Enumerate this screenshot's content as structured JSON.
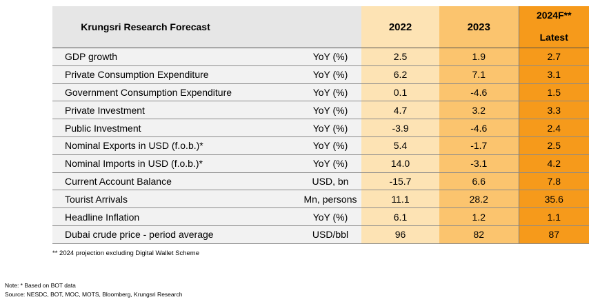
{
  "table": {
    "title": "Krungsri Research Forecast",
    "year_1": "2022",
    "year_2": "2023",
    "year_3_line1": "2024F**",
    "year_3_line2": "Latest",
    "rows": [
      {
        "name": "GDP growth",
        "unit": "YoY (%)",
        "v1": "2.5",
        "v2": "1.9",
        "v3": "2.7"
      },
      {
        "name": "Private Consumption Expenditure",
        "unit": "YoY (%)",
        "v1": "6.2",
        "v2": "7.1",
        "v3": "3.1"
      },
      {
        "name": "Government Consumption Expenditure",
        "unit": "YoY (%)",
        "v1": "0.1",
        "v2": "-4.6",
        "v3": "1.5"
      },
      {
        "name": "Private Investment",
        "unit": "YoY (%)",
        "v1": "4.7",
        "v2": "3.2",
        "v3": "3.3"
      },
      {
        "name": "Public Investment",
        "unit": "YoY (%)",
        "v1": "-3.9",
        "v2": "-4.6",
        "v3": "2.4"
      },
      {
        "name": "Nominal Exports in USD (f.o.b.)*",
        "unit": "YoY (%)",
        "v1": "5.4",
        "v2": "-1.7",
        "v3": "2.5"
      },
      {
        "name": "Nominal Imports in USD (f.o.b.)*",
        "unit": "YoY (%)",
        "v1": "14.0",
        "v2": "-3.1",
        "v3": "4.2"
      },
      {
        "name": "Current Account Balance",
        "unit": "USD, bn",
        "v1": "-15.7",
        "v2": "6.6",
        "v3": "7.8"
      },
      {
        "name": "Tourist Arrivals",
        "unit": "Mn, persons",
        "v1": "11.1",
        "v2": "28.2",
        "v3": "35.6"
      },
      {
        "name": "Headline Inflation",
        "unit": "YoY (%)",
        "v1": "6.1",
        "v2": "1.2",
        "v3": "1.1"
      },
      {
        "name": "Dubai crude price - period average",
        "unit": "USD/bbl",
        "v1": "96",
        "v2": "82",
        "v3": "87"
      }
    ]
  },
  "footnote": "** 2024 projection excluding Digital Wallet Scheme",
  "note": "Note: * Based on BOT data",
  "source": "Source: NESDC, BOT, MOC, MOTS, Bloomberg, Krungsri Research",
  "colors": {
    "header_gray": "#e6e6e6",
    "row_gray": "#f2f2f2",
    "col_2022": "#fde3b4",
    "col_2023": "#fbc46e",
    "col_2024": "#f69a1b"
  }
}
